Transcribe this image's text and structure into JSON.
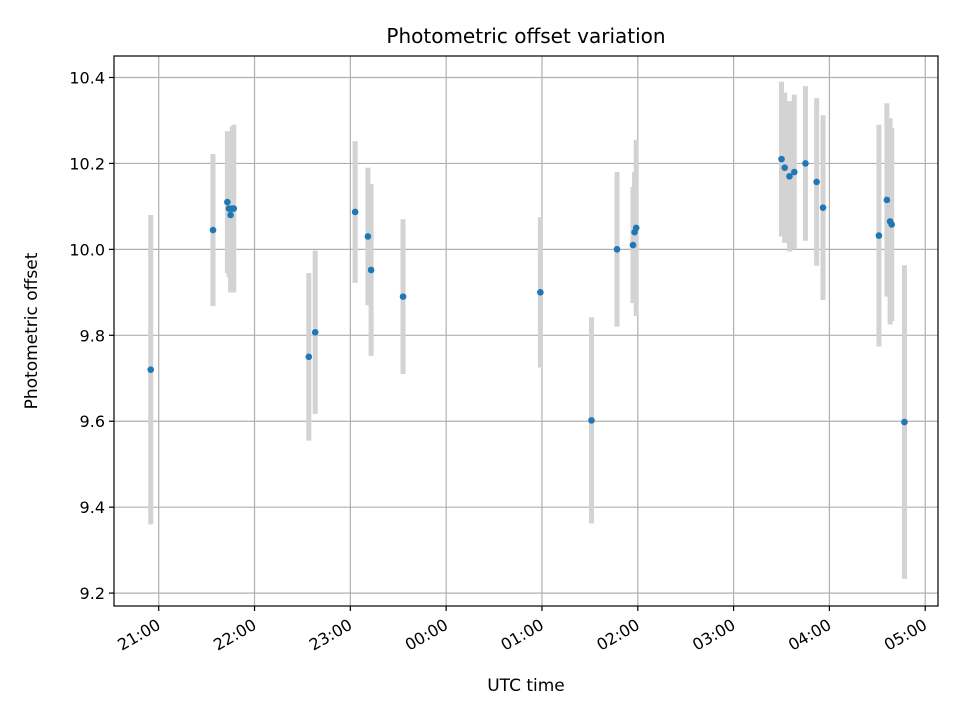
{
  "chart_data": {
    "type": "scatter",
    "title": "Photometric offset variation",
    "xlabel": "UTC time",
    "ylabel": "Photometric offset",
    "x_ticks": [
      "21:00",
      "22:00",
      "23:00",
      "00:00",
      "01:00",
      "02:00",
      "03:00",
      "04:00",
      "05:00"
    ],
    "y_ticks": [
      "9.2",
      "9.4",
      "9.6",
      "9.8",
      "10.0",
      "10.2",
      "10.4"
    ],
    "xlim": [
      "20:32",
      "05:08"
    ],
    "ylim": [
      9.17,
      10.45
    ],
    "grid": true,
    "colors": {
      "point": "#1f77b4",
      "errorbar": "#d3d3d3",
      "grid": "#b0b0b0"
    },
    "points": [
      {
        "x": "20:55",
        "y": 9.72,
        "err": 0.36
      },
      {
        "x": "21:34",
        "y": 10.045,
        "err": 0.177
      },
      {
        "x": "21:43",
        "y": 10.11,
        "err": 0.165
      },
      {
        "x": "21:44",
        "y": 10.095,
        "err": 0.16
      },
      {
        "x": "21:45",
        "y": 10.08,
        "err": 0.18
      },
      {
        "x": "21:46",
        "y": 10.095,
        "err": 0.19
      },
      {
        "x": "21:47",
        "y": 10.095,
        "err": 0.195
      },
      {
        "x": "22:34",
        "y": 9.75,
        "err": 0.195
      },
      {
        "x": "22:38",
        "y": 9.807,
        "err": 0.19
      },
      {
        "x": "23:03",
        "y": 10.087,
        "err": 0.165
      },
      {
        "x": "23:11",
        "y": 10.03,
        "err": 0.16
      },
      {
        "x": "23:13",
        "y": 9.952,
        "err": 0.2
      },
      {
        "x": "23:33",
        "y": 9.89,
        "err": 0.18
      },
      {
        "x": "00:59",
        "y": 9.9,
        "err": 0.175
      },
      {
        "x": "01:31",
        "y": 9.602,
        "err": 0.24
      },
      {
        "x": "01:47",
        "y": 10.0,
        "err": 0.18
      },
      {
        "x": "01:57",
        "y": 10.01,
        "err": 0.135
      },
      {
        "x": "01:58",
        "y": 10.04,
        "err": 0.14
      },
      {
        "x": "01:59",
        "y": 10.05,
        "err": 0.205
      },
      {
        "x": "03:30",
        "y": 10.21,
        "err": 0.18
      },
      {
        "x": "03:32",
        "y": 10.19,
        "err": 0.175
      },
      {
        "x": "03:35",
        "y": 10.17,
        "err": 0.175
      },
      {
        "x": "03:38",
        "y": 10.18,
        "err": 0.18
      },
      {
        "x": "03:45",
        "y": 10.2,
        "err": 0.18
      },
      {
        "x": "03:52",
        "y": 10.157,
        "err": 0.195
      },
      {
        "x": "03:56",
        "y": 10.097,
        "err": 0.215
      },
      {
        "x": "04:31",
        "y": 10.032,
        "err": 0.258
      },
      {
        "x": "04:36",
        "y": 10.115,
        "err": 0.225
      },
      {
        "x": "04:38",
        "y": 10.065,
        "err": 0.24
      },
      {
        "x": "04:39",
        "y": 10.058,
        "err": 0.225
      },
      {
        "x": "04:47",
        "y": 9.598,
        "err": 0.365
      }
    ]
  }
}
